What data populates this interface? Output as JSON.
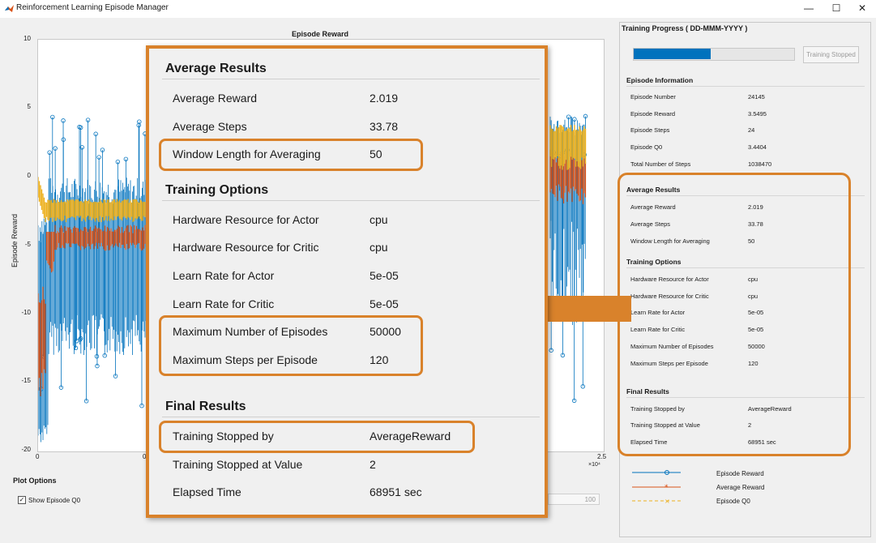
{
  "window": {
    "title": "Reinforcement Learning Episode Manager",
    "controls": {
      "minimize": "—",
      "maximize": "☐",
      "close": "✕"
    }
  },
  "plot": {
    "title": "Episode Reward",
    "ylabel": "Episode Reward",
    "yticks": [
      "10",
      "5",
      "0",
      "-5",
      "-10",
      "-15",
      "-20"
    ],
    "xticks": [
      "0",
      "0",
      "2.5"
    ],
    "xexp": "×10⁴"
  },
  "chart_data": {
    "type": "line",
    "title": "Episode Reward",
    "xlabel": "",
    "ylabel": "Episode Reward",
    "ylim": [
      -20,
      10
    ],
    "xlim": [
      0,
      25000
    ],
    "series": [
      {
        "name": "Episode Reward",
        "color": "#0072bd",
        "marker": "circle"
      },
      {
        "name": "Average Reward",
        "color": "#d95319",
        "marker": "asterisk"
      },
      {
        "name": "Episode Q0",
        "color": "#edb120",
        "marker": "x"
      }
    ]
  },
  "plot_options": {
    "title": "Plot Options",
    "show_q0_label": "Show Episode Q0",
    "show_q0_checked": "✓",
    "window_value": "100"
  },
  "right": {
    "progress_title": "Training Progress ( DD-MMM-YYYY )",
    "progress_fraction": 0.48,
    "stop_button": "Training Stopped",
    "episode_info": {
      "heading": "Episode Information",
      "rows": [
        {
          "label": "Episode Number",
          "value": "24145"
        },
        {
          "label": "Episode Reward",
          "value": "3.5495"
        },
        {
          "label": "Episode Steps",
          "value": "24"
        },
        {
          "label": "Episode Q0",
          "value": "3.4404"
        },
        {
          "label": "Total Number of Steps",
          "value": "1038470"
        }
      ]
    },
    "average_results": {
      "heading": "Average Results",
      "rows": [
        {
          "label": "Average Reward",
          "value": "2.019"
        },
        {
          "label": "Average Steps",
          "value": "33.78"
        },
        {
          "label": "Window Length for Averaging",
          "value": "50"
        }
      ]
    },
    "training_options": {
      "heading": "Training Options",
      "rows": [
        {
          "label": "Hardware Resource for Actor",
          "value": "cpu"
        },
        {
          "label": "Hardware Resource for Critic",
          "value": "cpu"
        },
        {
          "label": "Learn Rate for Actor",
          "value": "5e-05"
        },
        {
          "label": "Learn Rate for Critic",
          "value": "5e-05"
        },
        {
          "label": "Maximum Number of Episodes",
          "value": "50000"
        },
        {
          "label": "Maximum Steps per Episode",
          "value": "120"
        }
      ]
    },
    "final_results": {
      "heading": "Final Results",
      "rows": [
        {
          "label": "Training Stopped by",
          "value": "AverageReward"
        },
        {
          "label": "Training Stopped at Value",
          "value": "2"
        },
        {
          "label": "Elapsed Time",
          "value": "68951 sec"
        }
      ]
    },
    "legend": [
      "Episode Reward",
      "Average Reward",
      "Episode Q0"
    ]
  },
  "colors": {
    "accent": "#d9822b",
    "blue": "#0072bd",
    "orange": "#d95319",
    "yellow": "#edb120"
  }
}
